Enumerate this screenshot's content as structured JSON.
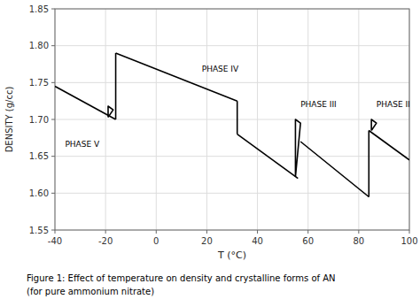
{
  "chart_data": {
    "type": "line",
    "xlabel": "T (°C)",
    "ylabel": "DENSITY (g/cc)",
    "caption": [
      "Figure 1: Effect of temperature on density and crystalline forms of AN",
      "(for pure ammonium nitrate)"
    ],
    "color": "#000000",
    "grid": true,
    "xlim": [
      -40,
      100
    ],
    "ylim": [
      1.55,
      1.85
    ],
    "xticks": [
      -40,
      -20,
      0,
      20,
      40,
      60,
      80,
      100
    ],
    "yticks": [
      {
        "value": 1.55,
        "label": "1.55"
      },
      {
        "value": 1.6,
        "label": "1.60"
      },
      {
        "value": 1.65,
        "label": "1.65"
      },
      {
        "value": 1.7,
        "label": "1.70"
      },
      {
        "value": 1.75,
        "label": "1.75"
      },
      {
        "value": 1.8,
        "label": "1.80"
      },
      {
        "value": 1.85,
        "label": "1.85"
      }
    ],
    "annotations": [
      {
        "text": "PHASE V",
        "x": -36,
        "y": 1.66
      },
      {
        "text": "PHASE IV",
        "x": 18,
        "y": 1.762
      },
      {
        "text": "PHASE III",
        "x": 57,
        "y": 1.714
      },
      {
        "text": "PHASE II",
        "x": 87,
        "y": 1.714
      }
    ],
    "series": [
      {
        "x": [
          -40,
          -16
        ],
        "values": [
          1.745,
          1.7
        ]
      },
      {
        "x": [
          -19,
          -19,
          -17,
          -19
        ],
        "values": [
          1.703,
          1.718,
          1.713,
          1.703
        ]
      },
      {
        "x": [
          -16,
          -16
        ],
        "values": [
          1.7,
          1.79
        ]
      },
      {
        "x": [
          -16,
          32
        ],
        "values": [
          1.79,
          1.725
        ]
      },
      {
        "x": [
          32,
          32
        ],
        "values": [
          1.725,
          1.68
        ]
      },
      {
        "x": [
          32,
          56
        ],
        "values": [
          1.68,
          1.62
        ]
      },
      {
        "x": [
          55,
          55,
          57,
          55
        ],
        "values": [
          1.622,
          1.7,
          1.695,
          1.622
        ]
      },
      {
        "x": [
          57,
          84
        ],
        "values": [
          1.67,
          1.595
        ]
      },
      {
        "x": [
          84,
          84
        ],
        "values": [
          1.595,
          1.685
        ]
      },
      {
        "x": [
          85,
          85,
          87,
          85
        ],
        "values": [
          1.685,
          1.7,
          1.695,
          1.685
        ]
      },
      {
        "x": [
          84,
          100
        ],
        "values": [
          1.685,
          1.645
        ]
      }
    ]
  }
}
